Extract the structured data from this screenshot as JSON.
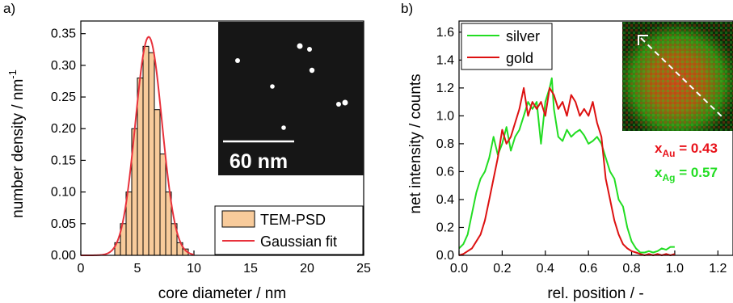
{
  "chart_data": [
    {
      "panel_label": "a)",
      "type": "bar",
      "xlabel": "core diameter / nm",
      "ylabel": "number density / nm",
      "ylabel_superscript": "-1",
      "xlim": [
        0,
        25
      ],
      "ylim": [
        0,
        0.37
      ],
      "xticks": [
        0,
        5,
        10,
        15,
        20,
        25
      ],
      "yticks": [
        0.0,
        0.05,
        0.1,
        0.15,
        0.2,
        0.25,
        0.3,
        0.35
      ],
      "bin_width": 0.5,
      "bins_left": [
        3.0,
        3.5,
        4.0,
        4.5,
        5.0,
        5.5,
        6.0,
        6.5,
        7.0,
        7.5,
        8.0,
        8.5,
        9.0
      ],
      "values": [
        0.02,
        0.05,
        0.1,
        0.2,
        0.28,
        0.33,
        0.32,
        0.23,
        0.16,
        0.1,
        0.05,
        0.02,
        0.01
      ],
      "gaussian": {
        "mean": 6.0,
        "sigma": 1.18,
        "amplitude": 0.345
      },
      "legend": [
        "TEM-PSD",
        "Gaussian fit"
      ],
      "legend_position": "bottom-right",
      "inset": {
        "scale_bar_label": "60 nm"
      },
      "colors": {
        "bars": "#f8cb9b",
        "fit": "#e8323c"
      }
    },
    {
      "panel_label": "b)",
      "type": "line",
      "xlabel": "rel. position / -",
      "ylabel": "net intensity / counts",
      "xlim": [
        0,
        1.27
      ],
      "ylim": [
        0,
        1.68
      ],
      "xticks": [
        "0.0",
        "0.2",
        "0.4",
        "0.6",
        "0.8",
        "1.0",
        "1.2"
      ],
      "yticks": [
        "0.0",
        "0.2",
        "0.4",
        "0.6",
        "0.8",
        "1.0",
        "1.2",
        "1.4",
        "1.6"
      ],
      "series": [
        {
          "name": "silver",
          "color": "#22dd22",
          "x": [
            0.0,
            0.02,
            0.04,
            0.06,
            0.08,
            0.1,
            0.12,
            0.14,
            0.16,
            0.18,
            0.2,
            0.22,
            0.24,
            0.26,
            0.28,
            0.3,
            0.32,
            0.34,
            0.36,
            0.38,
            0.4,
            0.42,
            0.43,
            0.44,
            0.46,
            0.48,
            0.5,
            0.52,
            0.54,
            0.56,
            0.58,
            0.6,
            0.62,
            0.64,
            0.66,
            0.68,
            0.7,
            0.72,
            0.74,
            0.76,
            0.78,
            0.8,
            0.82,
            0.84,
            0.86,
            0.88,
            0.9,
            0.92,
            0.94,
            0.96,
            0.98,
            1.0
          ],
          "y": [
            0.05,
            0.08,
            0.15,
            0.3,
            0.45,
            0.55,
            0.6,
            0.7,
            0.85,
            0.72,
            0.8,
            0.92,
            0.75,
            0.85,
            0.9,
            1.0,
            1.1,
            1.05,
            1.1,
            0.8,
            1.1,
            1.2,
            1.27,
            1.05,
            0.85,
            0.82,
            0.9,
            0.85,
            0.88,
            0.9,
            0.86,
            0.8,
            0.82,
            0.85,
            0.8,
            0.7,
            0.6,
            0.55,
            0.4,
            0.35,
            0.2,
            0.1,
            0.05,
            0.02,
            0.02,
            0.03,
            0.02,
            0.03,
            0.05,
            0.04,
            0.06,
            0.06
          ]
        },
        {
          "name": "gold",
          "color": "#dd1111",
          "x": [
            0.0,
            0.02,
            0.04,
            0.06,
            0.08,
            0.1,
            0.12,
            0.14,
            0.16,
            0.18,
            0.2,
            0.22,
            0.24,
            0.26,
            0.28,
            0.3,
            0.32,
            0.34,
            0.36,
            0.38,
            0.4,
            0.42,
            0.44,
            0.46,
            0.48,
            0.5,
            0.52,
            0.54,
            0.56,
            0.58,
            0.6,
            0.62,
            0.64,
            0.66,
            0.68,
            0.7,
            0.72,
            0.74,
            0.76,
            0.78,
            0.8,
            0.82,
            0.84,
            0.86,
            0.88,
            0.9,
            0.92,
            0.94,
            0.96,
            0.98,
            1.0
          ],
          "y": [
            0.0,
            0.01,
            0.03,
            0.05,
            0.1,
            0.15,
            0.25,
            0.4,
            0.55,
            0.7,
            0.9,
            0.8,
            0.85,
            0.95,
            1.05,
            1.2,
            1.0,
            1.1,
            1.05,
            1.1,
            1.0,
            1.2,
            1.15,
            1.05,
            1.1,
            1.0,
            1.15,
            1.1,
            1.0,
            1.05,
            1.0,
            1.1,
            0.95,
            0.85,
            0.55,
            0.4,
            0.25,
            0.15,
            0.08,
            0.05,
            0.03,
            0.02,
            0.01,
            0.0,
            0.01,
            0.0,
            0.01,
            0.0,
            0.01,
            0.0,
            0.01
          ]
        }
      ],
      "legend_position": "top-left",
      "annotations": [
        {
          "text": "x",
          "subscript": "Au",
          "value": " = 0.43",
          "color": "#e8121a"
        },
        {
          "text": "x",
          "subscript": "Ag",
          "value": " = 0.57",
          "color": "#22dd22"
        }
      ]
    }
  ]
}
